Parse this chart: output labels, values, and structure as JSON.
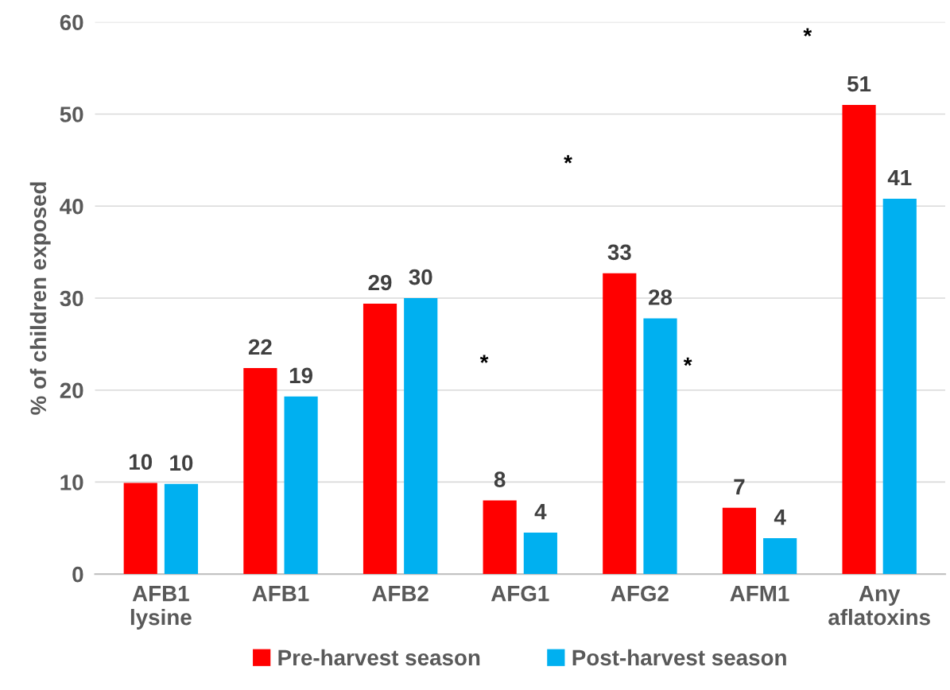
{
  "chart_data": {
    "type": "bar",
    "ylabel": "% of children exposed",
    "categories": [
      "AFB1\nlysine",
      "AFB1",
      "AFB2",
      "AFG1",
      "AFG2",
      "AFM1",
      "Any\naflatoxins"
    ],
    "series": [
      {
        "name": "Pre-harvest season",
        "color": "#ff0000",
        "values": [
          9.9,
          22.4,
          29.4,
          8.0,
          32.7,
          7.2,
          51.0
        ],
        "value_labels": [
          "10",
          "22",
          "29",
          "8",
          "33",
          "7",
          "51"
        ]
      },
      {
        "name": "Post-harvest season",
        "color": "#00b0f0",
        "values": [
          9.8,
          19.3,
          30.0,
          4.5,
          27.8,
          3.9,
          40.8
        ],
        "value_labels": [
          "10",
          "19",
          "30",
          "4",
          "28",
          "4",
          "41"
        ]
      }
    ],
    "ylim": [
      0,
      60
    ],
    "yticks": [
      0,
      10,
      20,
      30,
      40,
      50,
      60
    ],
    "grid": "y",
    "legend": "bottom",
    "annotations": [
      "*",
      "*",
      "*",
      "*"
    ]
  }
}
